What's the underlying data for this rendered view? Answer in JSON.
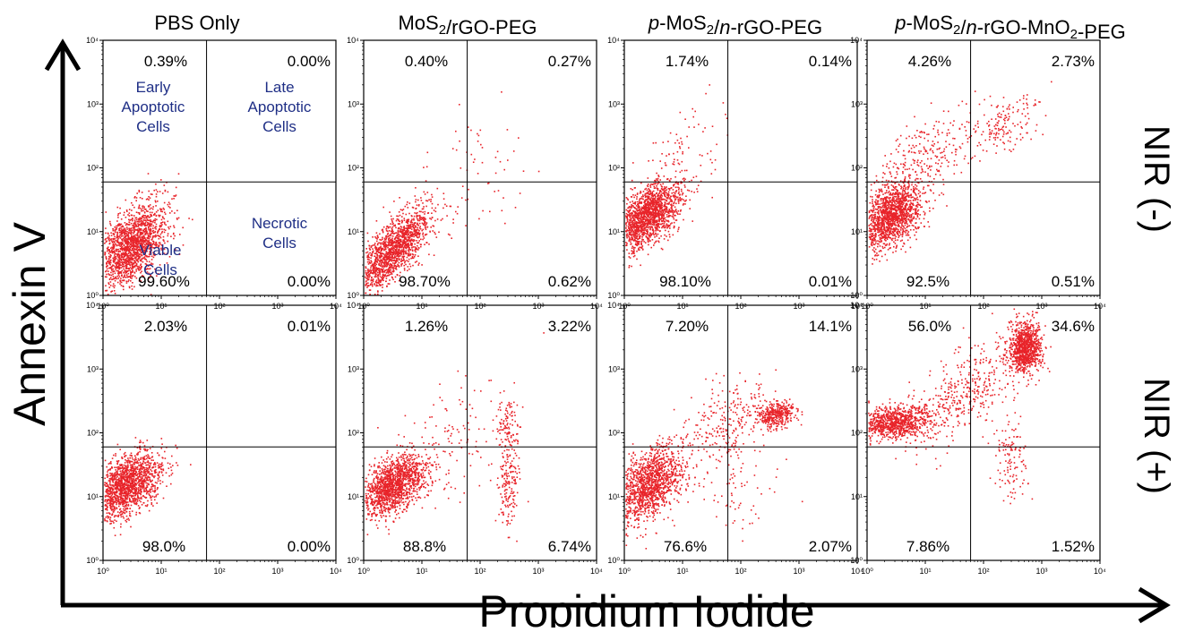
{
  "colors": {
    "points": "#e8242a",
    "frame": "#000000",
    "quadrant_labels": "#1f2f86",
    "background": "#ffffff"
  },
  "axes": {
    "xlabel": "Propidium Iodide",
    "ylabel": "Annexin V",
    "tick_labels": [
      "10⁰",
      "10¹",
      "10²",
      "10³",
      "10⁴"
    ]
  },
  "columns": [
    {
      "title": "PBS Only"
    },
    {
      "title": "MoS₂/rGO-PEG"
    },
    {
      "title": "p-MoS₂/n-rGO-PEG"
    },
    {
      "title": "p-MoS₂/n-rGO-MnO₂-PEG"
    }
  ],
  "rows": [
    {
      "label": "NIR (-)"
    },
    {
      "label": "NIR (+)"
    }
  ],
  "quadrant_annotations": {
    "early": "Early Apoptotic Cells",
    "late": "Late Apoptotic Cells",
    "viable": "Viable Cells",
    "necrotic": "Necrotic Cells"
  },
  "chart_data": {
    "type": "scatter",
    "x_scale": "log",
    "y_scale": "log",
    "xlim": [
      1,
      10000
    ],
    "ylim": [
      1,
      10000
    ],
    "quadrant_gate": {
      "x": 60,
      "y": 60
    },
    "panels": [
      {
        "row": 0,
        "col": 0,
        "upper_left": "0.39%",
        "upper_right": "0.00%",
        "lower_left": "99.60%",
        "lower_right": "0.00%",
        "populations": [
          {
            "cx": 3,
            "cy": 6,
            "sx": 0.3,
            "sy": 0.33,
            "rho": 0.5,
            "n": 1700
          }
        ]
      },
      {
        "row": 0,
        "col": 1,
        "upper_left": "0.40%",
        "upper_right": "0.27%",
        "lower_left": "98.70%",
        "lower_right": "0.62%",
        "populations": [
          {
            "cx": 3,
            "cy": 5,
            "sx": 0.33,
            "sy": 0.33,
            "rho": 0.75,
            "n": 1500
          },
          {
            "cx": 80,
            "cy": 80,
            "sx": 0.45,
            "sy": 0.55,
            "rho": 0.3,
            "n": 70
          }
        ]
      },
      {
        "row": 0,
        "col": 2,
        "upper_left": "1.74%",
        "upper_right": "0.14%",
        "lower_left": "98.10%",
        "lower_right": "0.01%",
        "populations": [
          {
            "cx": 2.5,
            "cy": 18,
            "sx": 0.27,
            "sy": 0.25,
            "rho": 0.5,
            "n": 1600
          },
          {
            "cx": 8,
            "cy": 120,
            "sx": 0.4,
            "sy": 0.45,
            "rho": 0.6,
            "n": 120
          }
        ]
      },
      {
        "row": 0,
        "col": 3,
        "upper_left": "4.26%",
        "upper_right": "2.73%",
        "lower_left": "92.5%",
        "lower_right": "0.51%",
        "populations": [
          {
            "cx": 2.5,
            "cy": 18,
            "sx": 0.27,
            "sy": 0.27,
            "rho": 0.45,
            "n": 1500
          },
          {
            "cx": 10,
            "cy": 150,
            "sx": 0.45,
            "sy": 0.4,
            "rho": 0.6,
            "n": 250
          },
          {
            "cx": 200,
            "cy": 450,
            "sx": 0.3,
            "sy": 0.25,
            "rho": 0.5,
            "n": 150
          }
        ]
      },
      {
        "row": 1,
        "col": 0,
        "upper_left": "2.03%",
        "upper_right": "0.01%",
        "lower_left": "98.0%",
        "lower_right": "0.00%",
        "populations": [
          {
            "cx": 2.5,
            "cy": 15,
            "sx": 0.28,
            "sy": 0.26,
            "rho": 0.45,
            "n": 1600
          }
        ]
      },
      {
        "row": 1,
        "col": 1,
        "upper_left": "1.26%",
        "upper_right": "3.22%",
        "lower_left": "88.8%",
        "lower_right": "6.74%",
        "populations": [
          {
            "cx": 3,
            "cy": 15,
            "sx": 0.3,
            "sy": 0.24,
            "rho": 0.5,
            "n": 1500
          },
          {
            "cx": 300,
            "cy": 20,
            "sx": 0.1,
            "sy": 0.4,
            "rho": 0,
            "n": 180
          },
          {
            "cx": 300,
            "cy": 150,
            "sx": 0.1,
            "sy": 0.25,
            "rho": 0,
            "n": 90
          },
          {
            "cx": 40,
            "cy": 80,
            "sx": 0.5,
            "sy": 0.5,
            "rho": 0.4,
            "n": 120
          }
        ]
      },
      {
        "row": 1,
        "col": 2,
        "upper_left": "7.20%",
        "upper_right": "14.1%",
        "lower_left": "76.6%",
        "lower_right": "2.07%",
        "populations": [
          {
            "cx": 2.5,
            "cy": 15,
            "sx": 0.3,
            "sy": 0.3,
            "rho": 0.45,
            "n": 1400
          },
          {
            "cx": 400,
            "cy": 200,
            "sx": 0.15,
            "sy": 0.1,
            "rho": 0.2,
            "n": 350
          },
          {
            "cx": 60,
            "cy": 150,
            "sx": 0.45,
            "sy": 0.35,
            "rho": 0.5,
            "n": 250
          },
          {
            "cx": 60,
            "cy": 15,
            "sx": 0.4,
            "sy": 0.4,
            "rho": 0,
            "n": 80
          }
        ]
      },
      {
        "row": 1,
        "col": 3,
        "upper_left": "56.0%",
        "upper_right": "34.6%",
        "lower_left": "7.86%",
        "lower_right": "1.52%",
        "populations": [
          {
            "cx": 3,
            "cy": 150,
            "sx": 0.3,
            "sy": 0.13,
            "rho": 0.2,
            "n": 900
          },
          {
            "cx": 500,
            "cy": 2200,
            "sx": 0.14,
            "sy": 0.2,
            "rho": 0.1,
            "n": 1000
          },
          {
            "cx": 40,
            "cy": 400,
            "sx": 0.45,
            "sy": 0.4,
            "rho": 0.6,
            "n": 400
          },
          {
            "cx": 300,
            "cy": 40,
            "sx": 0.15,
            "sy": 0.35,
            "rho": 0,
            "n": 120
          }
        ]
      }
    ]
  }
}
